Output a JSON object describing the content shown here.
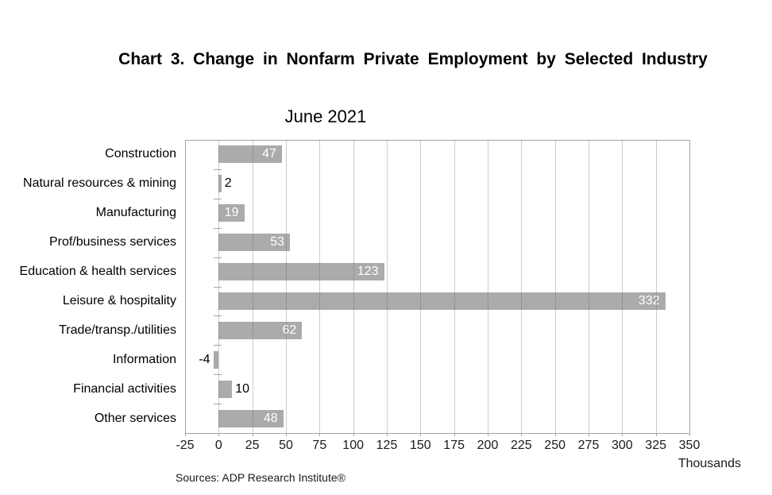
{
  "header": {
    "title": "Chart 3. Change in Nonfarm Private Employment by Selected Industry",
    "subtitle": "June 2021"
  },
  "footer": {
    "source_note": "Sources: ADP Research Institute®",
    "axis_unit": "Thousands"
  },
  "chart_data": {
    "type": "bar",
    "orientation": "horizontal",
    "title": "Chart 3. Change in Nonfarm Private Employment by Selected Industry",
    "subtitle": "June 2021",
    "categories": [
      "Construction",
      "Natural resources & mining",
      "Manufacturing",
      "Prof/business services",
      "Education & health services",
      "Leisure & hospitality",
      "Trade/transp./utilities",
      "Information",
      "Financial activities",
      "Other services"
    ],
    "values": [
      47,
      2,
      19,
      53,
      123,
      332,
      62,
      -4,
      10,
      48
    ],
    "xlabel": "Thousands",
    "ylabel": "",
    "xlim": [
      -25,
      350
    ],
    "xticks": [
      -25,
      0,
      25,
      50,
      75,
      100,
      125,
      150,
      175,
      200,
      225,
      250,
      275,
      300,
      325,
      350
    ],
    "grid": true,
    "legend": "none",
    "source_note": "Sources: ADP Research Institute®",
    "colors": {
      "bar": "#ababab",
      "grid": "#c6c6c6",
      "axis": "#a3a3a3",
      "value_label_inside": "#ffffff",
      "value_label_outside": "#000000",
      "text": "#000000"
    }
  }
}
